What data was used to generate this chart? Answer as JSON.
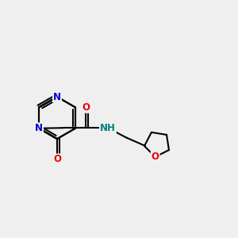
{
  "background_color": "#efefef",
  "bond_color": "#000000",
  "bond_width": 1.5,
  "atom_colors": {
    "N": "#0000cc",
    "O": "#ee0000",
    "NH": "#008080"
  },
  "figsize": [
    3.0,
    3.0
  ],
  "dpi": 100
}
